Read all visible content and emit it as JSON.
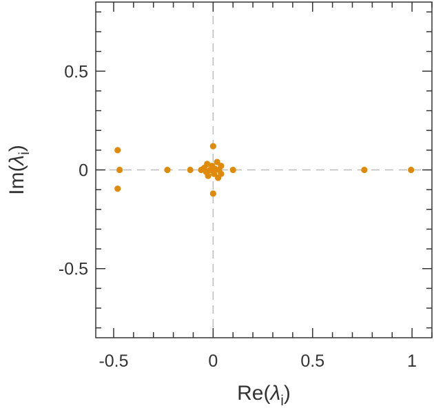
{
  "chart_data": {
    "type": "scatter",
    "title": "",
    "xlabel": {
      "prefix": "Re(",
      "symbol": "λ",
      "subscript": "i",
      "suffix": ")"
    },
    "ylabel": {
      "prefix": "Im(",
      "symbol": "λ",
      "subscript": "i",
      "suffix": ")"
    },
    "xlim": [
      -0.59,
      1.1
    ],
    "ylim": [
      -0.85,
      0.85
    ],
    "x_ticks": [
      {
        "value": -0.5,
        "label": "-0.5"
      },
      {
        "value": 0,
        "label": "0"
      },
      {
        "value": 0.5,
        "label": "0.5"
      },
      {
        "value": 1,
        "label": "1"
      }
    ],
    "y_ticks": [
      {
        "value": 0.5,
        "label": "0.5"
      },
      {
        "value": 0,
        "label": "0"
      },
      {
        "value": -0.5,
        "label": "-0.5"
      }
    ],
    "minor_tick_step": 0.1,
    "reference_lines": {
      "x0": true,
      "y0": true,
      "style": "dashed"
    },
    "grid": false,
    "colors": {
      "points": "#e08a0b",
      "axes": "#333333",
      "reference": "#bbbbbb"
    },
    "series": [
      {
        "points": [
          {
            "x": -0.48,
            "y": 0.1
          },
          {
            "x": -0.47,
            "y": 0.0
          },
          {
            "x": -0.48,
            "y": -0.095
          },
          {
            "x": -0.23,
            "y": 0.0
          },
          {
            "x": -0.115,
            "y": 0.0
          },
          {
            "x": -0.06,
            "y": 0.0
          },
          {
            "x": -0.045,
            "y": 0.01
          },
          {
            "x": -0.035,
            "y": -0.01
          },
          {
            "x": -0.03,
            "y": 0.03
          },
          {
            "x": -0.025,
            "y": -0.03
          },
          {
            "x": -0.015,
            "y": 0.0
          },
          {
            "x": -0.005,
            "y": 0.02
          },
          {
            "x": 0.0,
            "y": 0.12
          },
          {
            "x": 0.0,
            "y": -0.12
          },
          {
            "x": 0.005,
            "y": -0.02
          },
          {
            "x": 0.01,
            "y": 0.005
          },
          {
            "x": 0.02,
            "y": 0.04
          },
          {
            "x": 0.025,
            "y": -0.04
          },
          {
            "x": 0.03,
            "y": 0.0
          },
          {
            "x": 0.04,
            "y": 0.02
          },
          {
            "x": 0.04,
            "y": -0.02
          },
          {
            "x": 0.1,
            "y": 0.0
          },
          {
            "x": 0.76,
            "y": 0.0
          },
          {
            "x": 0.995,
            "y": 0.0
          }
        ]
      }
    ]
  }
}
